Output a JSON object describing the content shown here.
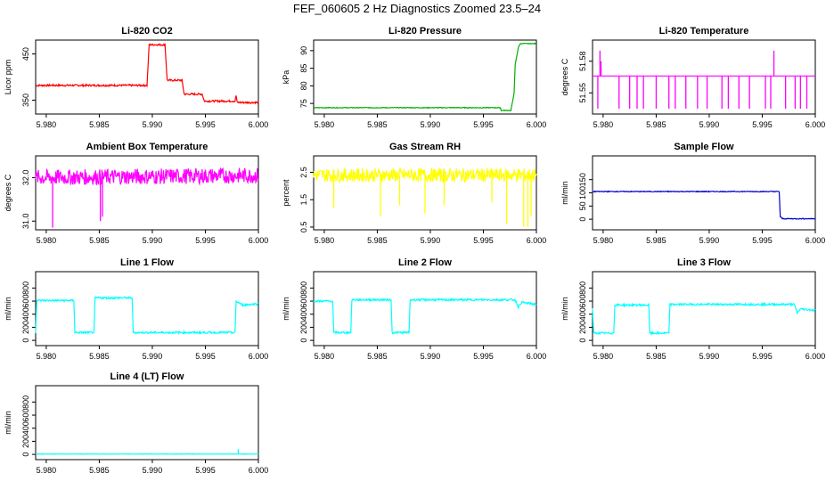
{
  "title": "FEF_060605  2 Hz Diagnostics Zoomed 23.5–24",
  "x_ticks": [
    "5.980",
    "5.985",
    "5.990",
    "5.995",
    "6.000"
  ],
  "chart_data": [
    {
      "type": "line",
      "title": "Li-820 CO2",
      "ylabel": "Licor ppm",
      "color": "#ff0000",
      "xlim": [
        5.979,
        6.0
      ],
      "ylim": [
        320,
        480
      ],
      "yticks": [
        350,
        450
      ],
      "ytick_labels": [
        "350",
        "450"
      ],
      "series": [
        {
          "points": [
            [
              5.979,
              382
            ],
            [
              5.9895,
              382
            ],
            [
              5.9897,
              470
            ],
            [
              5.9912,
              470
            ],
            [
              5.9914,
              393
            ],
            [
              5.9928,
              393
            ],
            [
              5.993,
              363
            ],
            [
              5.9947,
              363
            ],
            [
              5.9949,
              348
            ],
            [
              5.9978,
              348
            ],
            [
              5.9979,
              360
            ],
            [
              5.998,
              345
            ],
            [
              6.0,
              345
            ]
          ],
          "noise": 2
        }
      ]
    },
    {
      "type": "line",
      "title": "Li-820 Pressure",
      "ylabel": "kPa",
      "color": "#00b000",
      "xlim": [
        5.979,
        6.0
      ],
      "ylim": [
        72,
        93
      ],
      "yticks": [
        75,
        80,
        85,
        90
      ],
      "ytick_labels": [
        "75",
        "80",
        "85",
        "90"
      ],
      "series": [
        {
          "points": [
            [
              5.979,
              73.8
            ],
            [
              5.9966,
              73.8
            ],
            [
              5.9967,
              73
            ],
            [
              5.9976,
              73
            ],
            [
              5.9979,
              78
            ],
            [
              5.998,
              86
            ],
            [
              5.9983,
              91
            ],
            [
              5.9985,
              92
            ],
            [
              6.0,
              92
            ]
          ],
          "noise": 0.1
        }
      ]
    },
    {
      "type": "line",
      "title": "Li-820 Temperature",
      "ylabel": "degrees C",
      "color": "#ff00ff",
      "xlim": [
        5.979,
        6.0
      ],
      "ylim": [
        51.53,
        51.6
      ],
      "yticks": [
        51.55,
        51.58
      ],
      "ytick_labels": [
        "51.55",
        "51.58"
      ],
      "series": [
        {
          "points": [
            [
              5.979,
              51.566
            ],
            [
              6.0,
              51.566
            ]
          ],
          "spikes": [
            [
              5.9795,
              51.535
            ],
            [
              5.9797,
              51.59
            ],
            [
              5.9798,
              51.58
            ],
            [
              5.9815,
              51.535
            ],
            [
              5.9825,
              51.535
            ],
            [
              5.9832,
              51.535
            ],
            [
              5.9838,
              51.535
            ],
            [
              5.985,
              51.535
            ],
            [
              5.9862,
              51.535
            ],
            [
              5.9868,
              51.535
            ],
            [
              5.9878,
              51.535
            ],
            [
              5.9889,
              51.535
            ],
            [
              5.9898,
              51.535
            ],
            [
              5.9912,
              51.535
            ],
            [
              5.9918,
              51.535
            ],
            [
              5.9928,
              51.535
            ],
            [
              5.9938,
              51.535
            ],
            [
              5.9953,
              51.535
            ],
            [
              5.9958,
              51.535
            ],
            [
              5.9961,
              51.59
            ],
            [
              5.9972,
              51.535
            ],
            [
              5.9981,
              51.535
            ],
            [
              5.9986,
              51.535
            ],
            [
              5.9992,
              51.535
            ]
          ],
          "noise": 0
        }
      ]
    },
    {
      "type": "line",
      "title": "Ambient Box Temperature",
      "ylabel": "degrees C",
      "color": "#ff00ff",
      "xlim": [
        5.979,
        6.0
      ],
      "ylim": [
        30.8,
        32.5
      ],
      "yticks": [
        31.0,
        32.0
      ],
      "ytick_labels": [
        "31.0",
        "32.0"
      ],
      "series": [
        {
          "points": [
            [
              5.979,
              32.0
            ],
            [
              6.0,
              32.05
            ]
          ],
          "spikes": [
            [
              5.9806,
              30.85
            ],
            [
              5.9851,
              31.0
            ],
            [
              5.9853,
              31.1
            ]
          ],
          "noise": 0.18
        }
      ]
    },
    {
      "type": "line",
      "title": "Gas Stream RH",
      "ylabel": "percent",
      "color": "#ffff00",
      "xlim": [
        5.979,
        6.0
      ],
      "ylim": [
        0.4,
        3.1
      ],
      "yticks": [
        0.5,
        1.5,
        2.5
      ],
      "ytick_labels": [
        "0.5",
        "1.5",
        "2.5"
      ],
      "series": [
        {
          "points": [
            [
              5.979,
              2.4
            ],
            [
              6.0,
              2.4
            ]
          ],
          "spikes": [
            [
              5.9809,
              1.2
            ],
            [
              5.9853,
              0.9
            ],
            [
              5.9871,
              1.3
            ],
            [
              5.9895,
              1.0
            ],
            [
              5.9913,
              1.3
            ],
            [
              5.9958,
              1.4
            ],
            [
              5.9972,
              0.6
            ],
            [
              5.9988,
              0.5
            ],
            [
              5.9992,
              0.5
            ],
            [
              5.9995,
              0.9
            ]
          ],
          "noise": 0.25
        }
      ]
    },
    {
      "type": "line",
      "title": "Sample Flow",
      "ylabel": "ml/min",
      "color": "#0000cc",
      "xlim": [
        5.979,
        6.0
      ],
      "ylim": [
        -40,
        240
      ],
      "yticks": [
        0,
        50,
        100,
        150
      ],
      "ytick_labels": [
        "0",
        "50",
        "100",
        "150"
      ],
      "series": [
        {
          "points": [
            [
              5.979,
              105
            ],
            [
              5.9966,
              105
            ],
            [
              5.9967,
              10
            ],
            [
              5.9969,
              2
            ],
            [
              6.0,
              2
            ]
          ],
          "noise": 1.5
        }
      ]
    },
    {
      "type": "line",
      "title": "Line 1 Flow",
      "ylabel": "ml/min",
      "color": "#00ffff",
      "xlim": [
        5.979,
        6.0
      ],
      "ylim": [
        -80,
        1050
      ],
      "yticks": [
        0,
        200,
        400,
        600,
        800
      ],
      "ytick_labels": [
        "0",
        "200",
        "400",
        "600",
        "800"
      ],
      "series": [
        {
          "points": [
            [
              5.979,
              120
            ],
            [
              5.9791,
              610
            ],
            [
              5.9826,
              610
            ],
            [
              5.9827,
              120
            ],
            [
              5.9845,
              120
            ],
            [
              5.9846,
              650
            ],
            [
              5.9881,
              650
            ],
            [
              5.9882,
              120
            ],
            [
              5.9978,
              120
            ],
            [
              5.9979,
              600
            ],
            [
              5.9985,
              540
            ],
            [
              6.0,
              560
            ]
          ],
          "noise": 15
        }
      ]
    },
    {
      "type": "line",
      "title": "Line 2 Flow",
      "ylabel": "ml/min",
      "color": "#00ffff",
      "xlim": [
        5.979,
        6.0
      ],
      "ylim": [
        -80,
        1050
      ],
      "yticks": [
        0,
        200,
        400,
        600,
        800
      ],
      "ytick_labels": [
        "0",
        "200",
        "400",
        "600",
        "800"
      ],
      "series": [
        {
          "points": [
            [
              5.979,
              600
            ],
            [
              5.9808,
              600
            ],
            [
              5.9809,
              120
            ],
            [
              5.9825,
              120
            ],
            [
              5.9826,
              620
            ],
            [
              5.9863,
              620
            ],
            [
              5.9864,
              120
            ],
            [
              5.988,
              120
            ],
            [
              5.9881,
              620
            ],
            [
              5.998,
              620
            ],
            [
              5.9983,
              510
            ],
            [
              5.9986,
              580
            ],
            [
              6.0,
              550
            ]
          ],
          "noise": 15
        }
      ]
    },
    {
      "type": "line",
      "title": "Line 3 Flow",
      "ylabel": "ml/min",
      "color": "#00ffff",
      "xlim": [
        5.979,
        6.0
      ],
      "ylim": [
        -80,
        1050
      ],
      "yticks": [
        0,
        200,
        400,
        600,
        800
      ],
      "ytick_labels": [
        "0",
        "200",
        "400",
        "600",
        "800"
      ],
      "series": [
        {
          "points": [
            [
              5.979,
              500
            ],
            [
              5.9791,
              110
            ],
            [
              5.981,
              110
            ],
            [
              5.9811,
              540
            ],
            [
              5.9843,
              540
            ],
            [
              5.9844,
              110
            ],
            [
              5.9862,
              110
            ],
            [
              5.9863,
              550
            ],
            [
              5.998,
              550
            ],
            [
              5.9983,
              420
            ],
            [
              5.9986,
              480
            ],
            [
              6.0,
              460
            ]
          ],
          "noise": 15
        }
      ]
    },
    {
      "type": "line",
      "title": "Line 4 (LT) Flow",
      "ylabel": "ml/min",
      "color": "#00ffff",
      "xlim": [
        5.979,
        6.0
      ],
      "ylim": [
        -80,
        1050
      ],
      "yticks": [
        0,
        200,
        400,
        600,
        800
      ],
      "ytick_labels": [
        "0",
        "200",
        "400",
        "600",
        "800"
      ],
      "series": [
        {
          "points": [
            [
              5.979,
              5
            ],
            [
              6.0,
              5
            ]
          ],
          "spikes": [
            [
              5.9981,
              80
            ]
          ],
          "noise": 3
        }
      ]
    }
  ]
}
